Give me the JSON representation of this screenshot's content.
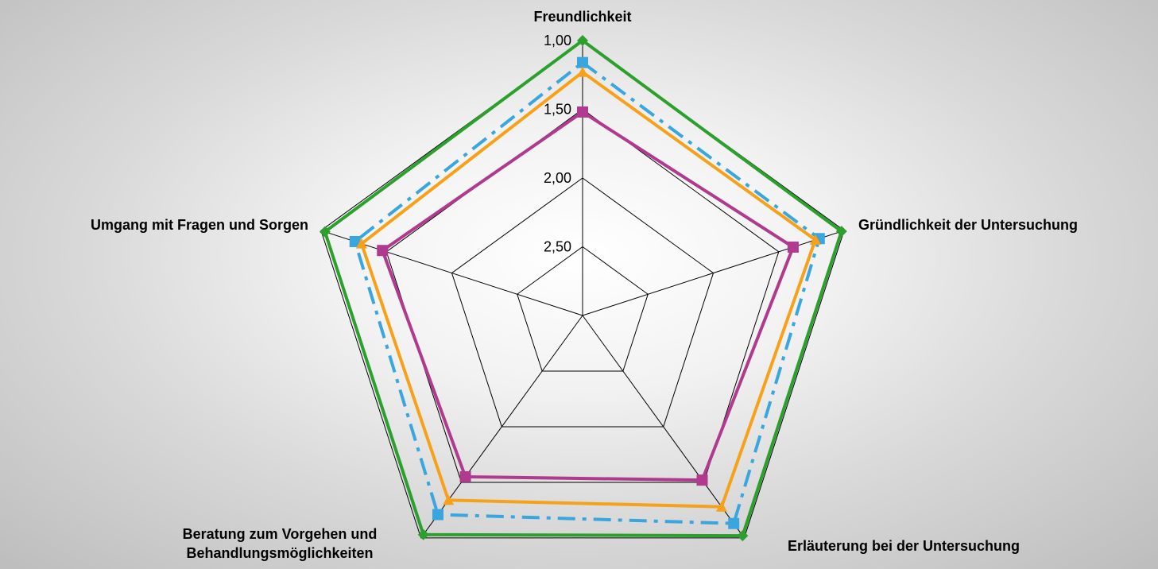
{
  "chart_data": {
    "type": "radar",
    "axes": [
      "Freundlichkeit",
      "Gründlichkeit der Untersuchung",
      "Erläuterung bei der Untersuchung",
      "Beratung zum Vorgehen und Behandlungsmöglichkeiten",
      "Umgang mit Fragen und Sorgen"
    ],
    "axis_label_lines": [
      [
        "Freundlichkeit"
      ],
      [
        "Gründlichkeit der Untersuchung"
      ],
      [
        "Erläuterung bei der Untersuchung"
      ],
      [
        "Beratung zum Vorgehen und",
        "Behandlungsmöglichkeiten"
      ],
      [
        "Umgang mit Fragen und Sorgen"
      ]
    ],
    "radial_scale": {
      "min": 1.0,
      "max": 3.0,
      "reversed": true,
      "ticks": [
        1.0,
        1.5,
        2.0,
        2.5
      ]
    },
    "tick_labels": [
      "1,00",
      "1,50",
      "2,00",
      "2,50"
    ],
    "grid": true,
    "legend": "none",
    "series": [
      {
        "values": [
          1.0,
          1.02,
          1.02,
          1.03,
          1.03
        ],
        "color": "#2ca02c",
        "style": "solid",
        "marker": "diamond"
      },
      {
        "values": [
          1.16,
          1.19,
          1.13,
          1.21,
          1.26
        ],
        "color": "#3aa6dd",
        "style": "dashdot",
        "marker": "square"
      },
      {
        "values": [
          1.23,
          1.22,
          1.28,
          1.34,
          1.31
        ],
        "color": "#f7a11a",
        "style": "solid",
        "marker": "triangle"
      },
      {
        "values": [
          1.52,
          1.39,
          1.52,
          1.55,
          1.47
        ],
        "color": "#b03a8e",
        "style": "solid",
        "marker": "square"
      }
    ]
  }
}
